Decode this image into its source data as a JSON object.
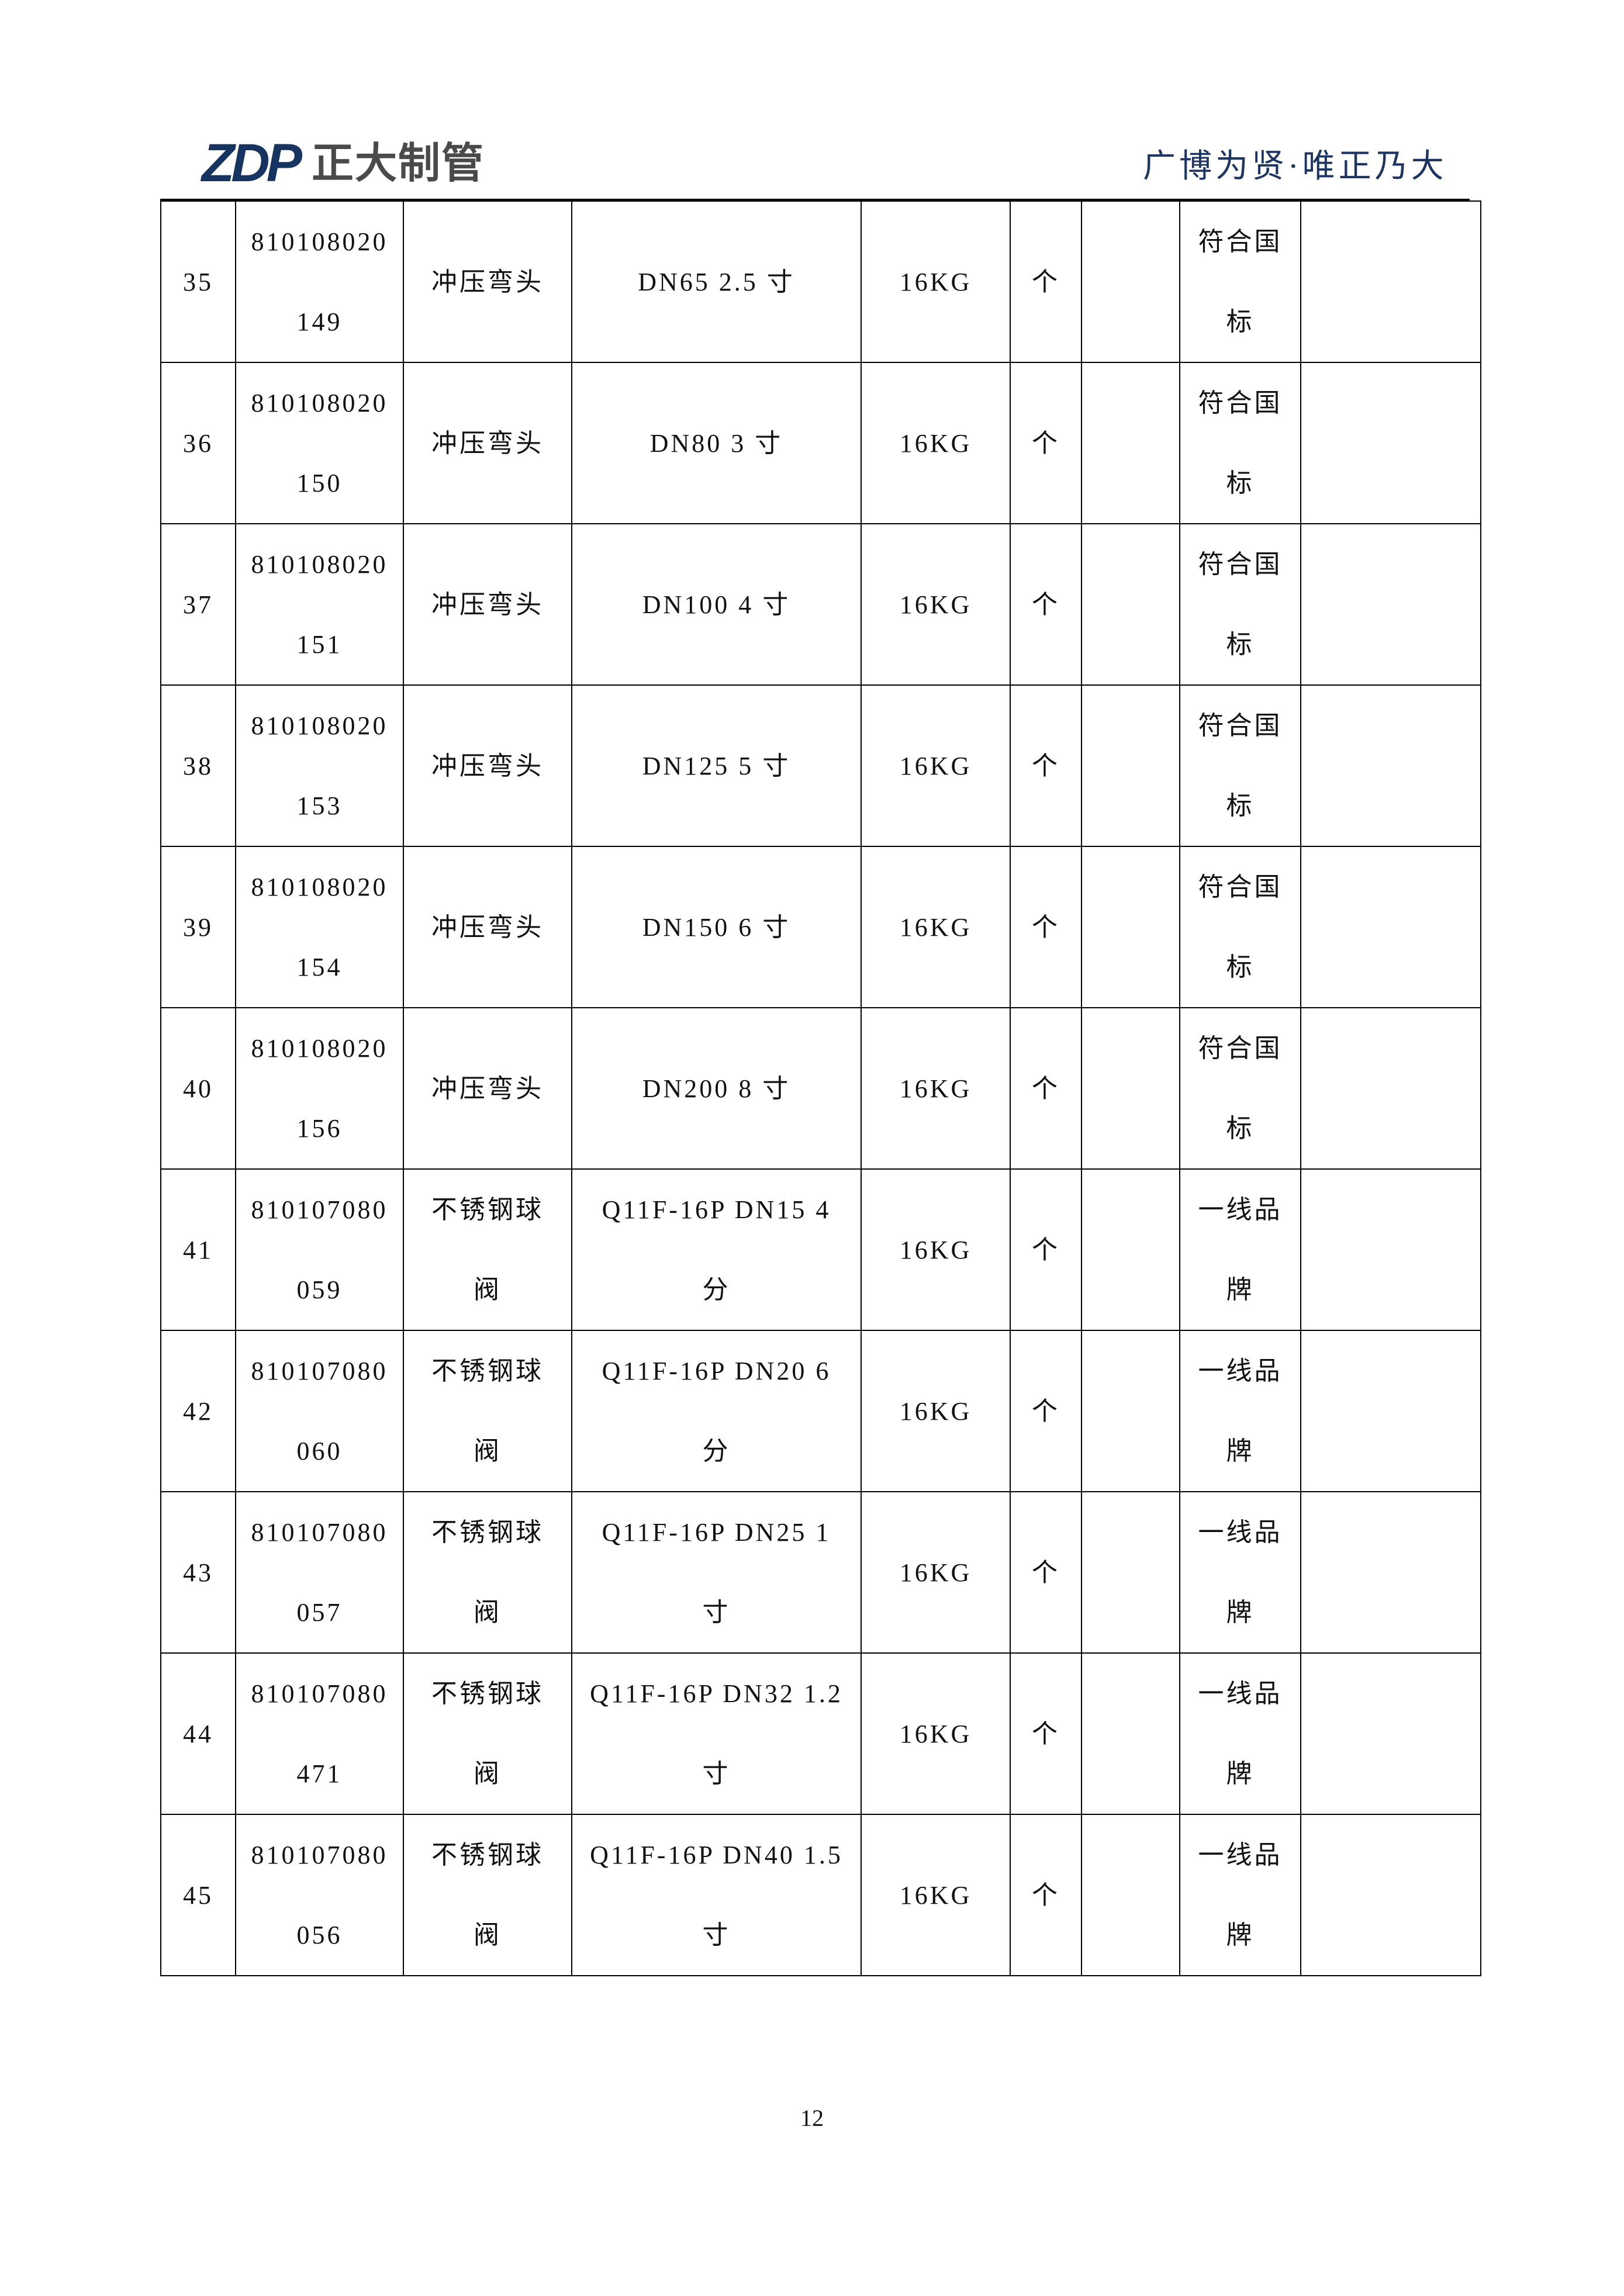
{
  "header": {
    "logo_mark": "ZDP",
    "logo_text": "正大制管",
    "slogan": "广博为贤·唯正乃大",
    "brand_color": "#17335f"
  },
  "rows": [
    {
      "no": "35",
      "code": [
        "810108020",
        "149"
      ],
      "name": [
        "冲压弯头"
      ],
      "spec": [
        "DN65 2.5 寸"
      ],
      "pressure": "16KG",
      "unit": "个",
      "qty": "",
      "remark": [
        "符合国",
        "标"
      ],
      "extra": ""
    },
    {
      "no": "36",
      "code": [
        "810108020",
        "150"
      ],
      "name": [
        "冲压弯头"
      ],
      "spec": [
        "DN80 3 寸"
      ],
      "pressure": "16KG",
      "unit": "个",
      "qty": "",
      "remark": [
        "符合国",
        "标"
      ],
      "extra": ""
    },
    {
      "no": "37",
      "code": [
        "810108020",
        "151"
      ],
      "name": [
        "冲压弯头"
      ],
      "spec": [
        "DN100 4 寸"
      ],
      "pressure": "16KG",
      "unit": "个",
      "qty": "",
      "remark": [
        "符合国",
        "标"
      ],
      "extra": ""
    },
    {
      "no": "38",
      "code": [
        "810108020",
        "153"
      ],
      "name": [
        "冲压弯头"
      ],
      "spec": [
        "DN125 5 寸"
      ],
      "pressure": "16KG",
      "unit": "个",
      "qty": "",
      "remark": [
        "符合国",
        "标"
      ],
      "extra": ""
    },
    {
      "no": "39",
      "code": [
        "810108020",
        "154"
      ],
      "name": [
        "冲压弯头"
      ],
      "spec": [
        "DN150 6 寸"
      ],
      "pressure": "16KG",
      "unit": "个",
      "qty": "",
      "remark": [
        "符合国",
        "标"
      ],
      "extra": ""
    },
    {
      "no": "40",
      "code": [
        "810108020",
        "156"
      ],
      "name": [
        "冲压弯头"
      ],
      "spec": [
        "DN200 8 寸"
      ],
      "pressure": "16KG",
      "unit": "个",
      "qty": "",
      "remark": [
        "符合国",
        "标"
      ],
      "extra": ""
    },
    {
      "no": "41",
      "code": [
        "810107080",
        "059"
      ],
      "name": [
        "不锈钢球",
        "阀"
      ],
      "spec": [
        "Q11F-16P  DN15 4",
        "分"
      ],
      "pressure": "16KG",
      "unit": "个",
      "qty": "",
      "remark": [
        "一线品",
        "牌"
      ],
      "extra": ""
    },
    {
      "no": "42",
      "code": [
        "810107080",
        "060"
      ],
      "name": [
        "不锈钢球",
        "阀"
      ],
      "spec": [
        "Q11F-16P  DN20 6",
        "分"
      ],
      "pressure": "16KG",
      "unit": "个",
      "qty": "",
      "remark": [
        "一线品",
        "牌"
      ],
      "extra": ""
    },
    {
      "no": "43",
      "code": [
        "810107080",
        "057"
      ],
      "name": [
        "不锈钢球",
        "阀"
      ],
      "spec": [
        "Q11F-16P  DN25 1",
        "寸"
      ],
      "pressure": "16KG",
      "unit": "个",
      "qty": "",
      "remark": [
        "一线品",
        "牌"
      ],
      "extra": ""
    },
    {
      "no": "44",
      "code": [
        "810107080",
        "471"
      ],
      "name": [
        "不锈钢球",
        "阀"
      ],
      "spec": [
        "Q11F-16P DN32 1.2",
        "寸"
      ],
      "pressure": "16KG",
      "unit": "个",
      "qty": "",
      "remark": [
        "一线品",
        "牌"
      ],
      "extra": ""
    },
    {
      "no": "45",
      "code": [
        "810107080",
        "056"
      ],
      "name": [
        "不锈钢球",
        "阀"
      ],
      "spec": [
        "Q11F-16P DN40 1.5",
        "寸"
      ],
      "pressure": "16KG",
      "unit": "个",
      "qty": "",
      "remark": [
        "一线品",
        "牌"
      ],
      "extra": ""
    }
  ],
  "footer": {
    "page_number": "12"
  }
}
